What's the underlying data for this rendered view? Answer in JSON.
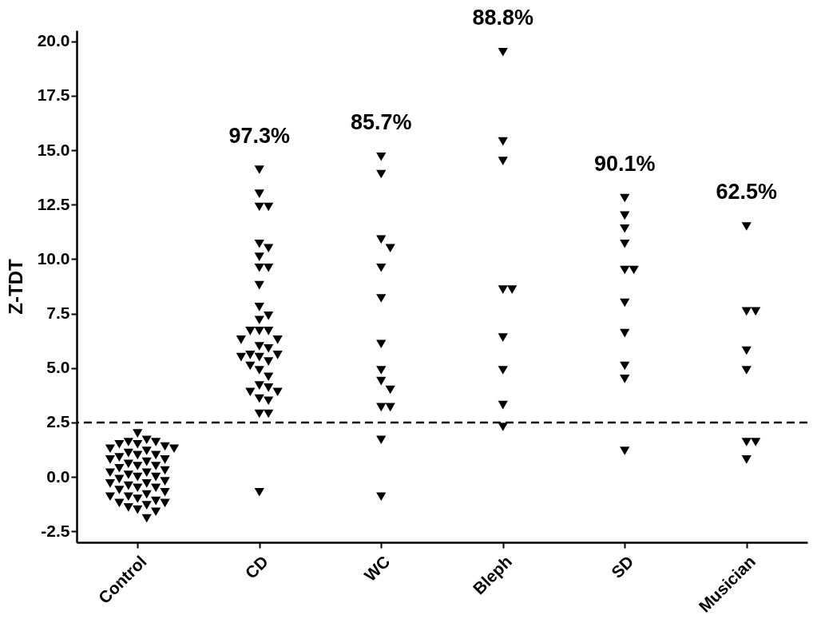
{
  "chart_data": {
    "type": "scatter",
    "ylabel": "Z-TDT",
    "categories": [
      "Control",
      "CD",
      "WC",
      "Bleph",
      "SD",
      "Musician"
    ],
    "series": [
      {
        "color": "#000000",
        "x": [
          "Control",
          "Control",
          "Control",
          "Control",
          "Control",
          "Control",
          "Control",
          "Control",
          "Control",
          "Control",
          "Control",
          "Control",
          "Control",
          "Control",
          "Control",
          "Control",
          "Control",
          "Control",
          "Control",
          "Control",
          "Control",
          "Control",
          "Control",
          "Control",
          "Control",
          "Control",
          "Control",
          "Control",
          "Control",
          "Control",
          "Control",
          "Control",
          "Control",
          "Control",
          "Control",
          "Control",
          "Control",
          "Control",
          "Control",
          "Control",
          "Control",
          "Control",
          "Control",
          "Control",
          "Control",
          "Control",
          "Control",
          "Control",
          "CD",
          "CD",
          "CD",
          "CD",
          "CD",
          "CD",
          "CD",
          "CD",
          "CD",
          "CD",
          "CD",
          "CD",
          "CD",
          "CD",
          "CD",
          "CD",
          "CD",
          "CD",
          "CD",
          "CD",
          "CD",
          "CD",
          "CD",
          "CD",
          "CD",
          "CD",
          "CD",
          "CD",
          "CD",
          "CD",
          "CD",
          "CD",
          "CD",
          "CD",
          "CD",
          "CD",
          "CD",
          "WC",
          "WC",
          "WC",
          "WC",
          "WC",
          "WC",
          "WC",
          "WC",
          "WC",
          "WC",
          "WC",
          "WC",
          "WC",
          "WC",
          "Bleph",
          "Bleph",
          "Bleph",
          "Bleph",
          "Bleph",
          "Bleph",
          "Bleph",
          "Bleph",
          "Bleph",
          "SD",
          "SD",
          "SD",
          "SD",
          "SD",
          "SD",
          "SD",
          "SD",
          "SD",
          "SD",
          "SD",
          "Musician",
          "Musician",
          "Musician",
          "Musician",
          "Musician",
          "Musician",
          "Musician",
          "Musician"
        ],
        "values": [
          2.0,
          1.7,
          1.6,
          1.6,
          1.5,
          1.5,
          1.4,
          1.3,
          1.3,
          1.2,
          1.1,
          1.0,
          1.0,
          0.9,
          0.8,
          0.8,
          0.7,
          0.6,
          0.5,
          0.5,
          0.4,
          0.3,
          0.2,
          0.2,
          0.1,
          0.0,
          0.0,
          -0.1,
          -0.2,
          -0.3,
          -0.3,
          -0.4,
          -0.5,
          -0.5,
          -0.6,
          -0.7,
          -0.8,
          -0.9,
          -0.9,
          -1.0,
          -1.1,
          -1.2,
          -1.2,
          -1.3,
          -1.4,
          -1.5,
          -1.6,
          -1.9,
          14.1,
          13.0,
          12.4,
          12.4,
          10.7,
          10.5,
          10.1,
          9.6,
          9.6,
          8.8,
          7.8,
          7.2,
          7.4,
          6.7,
          6.7,
          6.7,
          6.3,
          6.3,
          6.0,
          5.9,
          5.6,
          5.6,
          5.5,
          5.5,
          5.3,
          5.1,
          4.9,
          4.6,
          4.2,
          4.1,
          3.9,
          3.9,
          3.6,
          3.5,
          2.9,
          2.9,
          -0.7,
          14.7,
          13.9,
          10.9,
          10.5,
          9.6,
          8.2,
          6.1,
          4.9,
          4.4,
          4.0,
          3.2,
          3.2,
          1.7,
          -0.9,
          19.5,
          15.4,
          14.5,
          8.6,
          8.6,
          6.4,
          4.9,
          3.3,
          2.3,
          12.8,
          12.0,
          11.4,
          10.7,
          9.5,
          9.5,
          8.0,
          6.6,
          5.1,
          4.5,
          1.2,
          11.5,
          7.6,
          7.6,
          5.8,
          4.9,
          1.6,
          1.6,
          0.8
        ]
      }
    ],
    "ylim": [
      -3,
      20.5
    ],
    "yticks": [
      {
        "value": -2.5,
        "label": "-2.5"
      },
      {
        "value": 0,
        "label": "0.0"
      },
      2.5,
      {
        "value": 5,
        "label": "5.0"
      },
      7.5,
      {
        "value": 10,
        "label": "10.0"
      },
      12.5,
      {
        "value": 15,
        "label": "15.0"
      },
      17.5,
      {
        "value": 20,
        "label": "20.0"
      }
    ],
    "marker": "triangle",
    "ref_lines": [
      {
        "axis": "y",
        "value": 2.5,
        "line_style": "dashed"
      }
    ],
    "annotations": [
      "97.3%",
      "85.7%",
      "88.8%",
      "90.1%",
      "62.5%"
    ]
  }
}
